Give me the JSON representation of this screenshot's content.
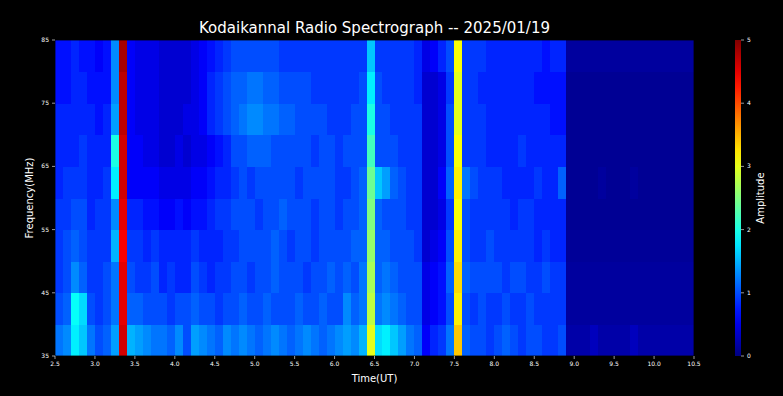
{
  "chart_data": {
    "type": "heatmap",
    "title": "Kodaikannal Radio Spectrograph -- 2025/01/19",
    "x_label": "Time(UT)",
    "y_label": "Frequency(MHz)",
    "x": [
      2.55,
      2.65,
      2.75,
      2.85,
      2.95,
      3.05,
      3.15,
      3.25,
      3.35,
      3.45,
      3.55,
      3.65,
      3.75,
      3.85,
      3.95,
      4.05,
      4.15,
      4.25,
      4.35,
      4.45,
      4.55,
      4.65,
      4.75,
      4.85,
      4.95,
      5.05,
      5.15,
      5.25,
      5.35,
      5.45,
      5.55,
      5.65,
      5.75,
      5.85,
      5.95,
      6.05,
      6.15,
      6.25,
      6.35,
      6.45,
      6.55,
      6.65,
      6.75,
      6.85,
      6.95,
      7.05,
      7.15,
      7.25,
      7.35,
      7.45,
      7.55,
      7.65,
      7.75,
      7.85,
      7.95,
      8.05,
      8.15,
      8.25,
      8.35,
      8.45,
      8.55,
      8.65,
      8.75,
      8.85,
      8.95,
      9.05,
      9.15,
      9.25,
      9.35,
      9.45,
      9.55,
      9.65,
      9.75,
      9.85,
      9.95,
      10.05,
      10.15,
      10.25,
      10.35,
      10.45
    ],
    "y": [
      37.5,
      42.5,
      47.5,
      52.5,
      57.5,
      62.5,
      67.5,
      72.5,
      77.5,
      82.5
    ],
    "values": [
      [
        1.2,
        1.3,
        1.8,
        1.6,
        1.2,
        1.0,
        1.1,
        1.4,
        4.6,
        1.5,
        1.4,
        1.3,
        1.2,
        1.2,
        1.1,
        1.3,
        1.0,
        1.4,
        1.3,
        1.2,
        1.1,
        1.3,
        1.2,
        1.3,
        1.2,
        1.1,
        1.2,
        1.3,
        1.2,
        1.1,
        1.2,
        1.3,
        1.2,
        1.1,
        1.2,
        1.3,
        1.4,
        1.3,
        1.5,
        3.0,
        1.7,
        1.8,
        1.6,
        1.4,
        1.2,
        1.1,
        0.6,
        0.8,
        0.9,
        1.2,
        3.4,
        1.1,
        1.0,
        1.0,
        0.9,
        1.0,
        1.1,
        1.0,
        0.9,
        1.0,
        1.0,
        0.9,
        0.9,
        1.0,
        0.2,
        0.2,
        0.2,
        0.3,
        0.2,
        0.2,
        0.2,
        0.2,
        0.3,
        0.2,
        0.2,
        0.2,
        0.2,
        0.2,
        0.2,
        0.2
      ],
      [
        1.0,
        1.1,
        1.9,
        1.7,
        1.0,
        0.9,
        1.0,
        1.2,
        4.5,
        1.1,
        1.1,
        1.0,
        1.0,
        1.0,
        0.9,
        1.0,
        1.0,
        1.1,
        1.0,
        1.0,
        0.9,
        1.0,
        1.0,
        1.1,
        1.0,
        1.0,
        1.1,
        1.0,
        1.0,
        1.0,
        1.1,
        1.0,
        1.0,
        1.1,
        1.0,
        1.0,
        1.3,
        1.1,
        1.2,
        2.8,
        1.2,
        1.3,
        1.2,
        1.1,
        1.0,
        1.0,
        0.5,
        0.6,
        0.7,
        1.0,
        3.2,
        1.0,
        0.9,
        1.0,
        0.9,
        0.9,
        1.0,
        0.9,
        0.9,
        1.0,
        0.9,
        0.9,
        0.9,
        0.9,
        0.15,
        0.15,
        0.15,
        0.15,
        0.15,
        0.15,
        0.15,
        0.15,
        0.15,
        0.15,
        0.15,
        0.15,
        0.15,
        0.15,
        0.15,
        0.15
      ],
      [
        0.9,
        1.0,
        1.3,
        1.1,
        0.9,
        0.9,
        1.0,
        1.2,
        4.5,
        1.0,
        0.9,
        0.9,
        1.0,
        0.8,
        0.9,
        0.8,
        0.8,
        1.0,
        0.9,
        0.8,
        0.9,
        0.9,
        1.0,
        1.0,
        0.9,
        1.0,
        1.0,
        1.1,
        1.0,
        1.0,
        1.0,
        0.9,
        1.0,
        1.0,
        1.1,
        1.0,
        1.1,
        1.0,
        1.2,
        2.7,
        1.1,
        1.2,
        1.1,
        1.0,
        1.0,
        1.0,
        0.5,
        0.6,
        0.7,
        1.1,
        3.3,
        1.1,
        1.0,
        1.0,
        1.0,
        1.0,
        0.9,
        1.0,
        1.0,
        0.9,
        0.9,
        1.0,
        0.9,
        0.9,
        0.15,
        0.15,
        0.15,
        0.15,
        0.15,
        0.15,
        0.15,
        0.15,
        0.15,
        0.15,
        0.15,
        0.15,
        0.15,
        0.15,
        0.15,
        0.15
      ],
      [
        0.9,
        1.0,
        1.1,
        1.0,
        0.9,
        0.9,
        0.9,
        1.5,
        4.4,
        0.9,
        0.9,
        0.8,
        0.9,
        0.8,
        0.8,
        0.8,
        0.8,
        0.9,
        0.8,
        0.8,
        0.8,
        0.9,
        0.9,
        1.0,
        1.0,
        1.0,
        1.0,
        1.1,
        1.0,
        0.9,
        1.0,
        1.0,
        0.9,
        1.0,
        1.0,
        1.0,
        1.0,
        1.1,
        1.1,
        2.6,
        1.1,
        1.1,
        1.0,
        1.0,
        1.0,
        0.9,
        0.4,
        0.5,
        0.6,
        1.0,
        3.2,
        1.0,
        0.9,
        0.9,
        1.0,
        0.9,
        0.9,
        0.9,
        0.9,
        0.9,
        0.8,
        0.9,
        0.8,
        0.8,
        0.12,
        0.12,
        0.12,
        0.12,
        0.12,
        0.12,
        0.12,
        0.12,
        0.12,
        0.12,
        0.12,
        0.12,
        0.12,
        0.12,
        0.12,
        0.12
      ],
      [
        0.9,
        0.9,
        1.0,
        1.0,
        0.8,
        0.9,
        0.9,
        1.3,
        4.5,
        0.8,
        0.8,
        0.7,
        0.7,
        0.6,
        0.6,
        0.7,
        0.6,
        0.7,
        0.7,
        0.8,
        0.9,
        0.9,
        1.0,
        1.0,
        1.0,
        0.9,
        1.0,
        1.0,
        1.1,
        1.0,
        1.0,
        1.0,
        0.9,
        1.0,
        1.0,
        0.9,
        1.0,
        1.0,
        1.1,
        2.5,
        1.1,
        1.0,
        1.0,
        1.0,
        0.9,
        0.9,
        0.4,
        0.4,
        0.5,
        0.9,
        3.1,
        1.0,
        0.9,
        0.9,
        0.9,
        0.9,
        0.9,
        0.8,
        0.9,
        0.9,
        0.8,
        0.8,
        0.8,
        0.8,
        0.1,
        0.1,
        0.1,
        0.1,
        0.1,
        0.1,
        0.1,
        0.1,
        0.1,
        0.1,
        0.1,
        0.1,
        0.1,
        0.1,
        0.1,
        0.1
      ],
      [
        0.8,
        0.9,
        0.9,
        0.9,
        0.8,
        0.8,
        0.9,
        1.8,
        4.6,
        0.6,
        0.6,
        0.6,
        0.6,
        0.5,
        0.5,
        0.5,
        0.5,
        0.6,
        0.6,
        0.7,
        0.8,
        0.8,
        0.9,
        1.0,
        0.9,
        1.0,
        1.0,
        1.0,
        1.0,
        1.0,
        0.9,
        1.0,
        1.0,
        1.0,
        1.0,
        0.9,
        0.9,
        1.0,
        1.1,
        2.4,
        1.6,
        1.4,
        1.1,
        1.0,
        0.9,
        0.9,
        0.4,
        0.4,
        0.6,
        1.1,
        3.2,
        1.2,
        1.0,
        0.9,
        0.9,
        0.9,
        0.8,
        0.8,
        0.8,
        0.8,
        0.9,
        0.8,
        0.8,
        1.1,
        0.1,
        0.1,
        0.1,
        0.1,
        0.15,
        0.1,
        0.1,
        0.1,
        0.15,
        0.1,
        0.1,
        0.1,
        0.1,
        0.1,
        0.1,
        0.1
      ],
      [
        0.8,
        0.8,
        0.8,
        0.9,
        0.8,
        0.8,
        0.8,
        2.0,
        4.6,
        0.6,
        0.6,
        0.5,
        0.5,
        0.4,
        0.4,
        0.5,
        0.4,
        0.5,
        0.5,
        0.6,
        0.7,
        0.8,
        1.0,
        1.0,
        1.1,
        1.1,
        1.1,
        1.0,
        1.0,
        1.0,
        1.0,
        1.0,
        0.9,
        1.0,
        1.0,
        0.9,
        1.0,
        1.0,
        1.0,
        2.2,
        1.0,
        1.0,
        1.0,
        0.9,
        0.9,
        0.9,
        0.4,
        0.4,
        0.5,
        1.0,
        3.1,
        0.9,
        0.9,
        0.9,
        0.8,
        0.8,
        0.8,
        0.8,
        0.9,
        0.8,
        0.8,
        0.8,
        0.8,
        0.8,
        0.1,
        0.1,
        0.1,
        0.1,
        0.1,
        0.1,
        0.1,
        0.1,
        0.1,
        0.1,
        0.1,
        0.1,
        0.1,
        0.1,
        0.1,
        0.1
      ],
      [
        0.8,
        0.8,
        0.8,
        0.8,
        0.8,
        0.7,
        0.8,
        1.4,
        4.7,
        0.6,
        0.5,
        0.5,
        0.5,
        0.4,
        0.4,
        0.4,
        0.5,
        0.5,
        0.6,
        0.8,
        0.9,
        1.0,
        1.1,
        1.2,
        1.3,
        1.3,
        1.2,
        1.2,
        1.1,
        1.1,
        1.0,
        1.0,
        1.0,
        1.0,
        0.9,
        0.9,
        0.9,
        1.0,
        1.0,
        2.0,
        1.0,
        1.0,
        0.9,
        0.9,
        0.9,
        0.9,
        0.4,
        0.4,
        0.5,
        1.0,
        3.0,
        0.9,
        0.9,
        0.9,
        0.8,
        0.8,
        0.8,
        0.8,
        0.8,
        0.8,
        0.8,
        0.8,
        0.7,
        0.7,
        0.1,
        0.1,
        0.1,
        0.1,
        0.1,
        0.1,
        0.1,
        0.1,
        0.1,
        0.1,
        0.1,
        0.1,
        0.1,
        0.1,
        0.1,
        0.1
      ],
      [
        0.7,
        0.7,
        0.8,
        0.8,
        0.7,
        0.7,
        0.7,
        1.3,
        4.7,
        0.6,
        0.5,
        0.5,
        0.5,
        0.4,
        0.4,
        0.4,
        0.4,
        0.5,
        0.6,
        0.8,
        0.9,
        1.0,
        1.1,
        1.1,
        1.2,
        1.2,
        1.1,
        1.1,
        1.0,
        1.0,
        1.0,
        1.0,
        0.9,
        0.9,
        0.9,
        0.9,
        0.9,
        0.9,
        1.0,
        1.8,
        1.0,
        0.9,
        0.9,
        0.9,
        0.9,
        0.8,
        0.4,
        0.4,
        0.5,
        0.9,
        3.0,
        0.9,
        0.9,
        0.8,
        0.8,
        0.8,
        0.8,
        0.8,
        0.8,
        0.8,
        0.7,
        0.7,
        0.7,
        0.7,
        0.1,
        0.1,
        0.1,
        0.1,
        0.1,
        0.1,
        0.1,
        0.1,
        0.1,
        0.1,
        0.1,
        0.1,
        0.1,
        0.1,
        0.1,
        0.1
      ],
      [
        0.7,
        0.7,
        0.8,
        0.7,
        0.7,
        0.6,
        0.7,
        1.3,
        4.8,
        0.6,
        0.5,
        0.5,
        0.5,
        0.4,
        0.4,
        0.4,
        0.4,
        0.5,
        0.6,
        0.7,
        0.8,
        0.9,
        1.0,
        1.0,
        1.0,
        1.0,
        1.0,
        1.0,
        0.9,
        0.9,
        0.9,
        0.9,
        0.9,
        0.9,
        0.9,
        0.9,
        0.9,
        0.9,
        0.9,
        1.6,
        0.9,
        0.9,
        0.9,
        0.9,
        0.9,
        0.8,
        0.5,
        0.6,
        0.8,
        1.0,
        3.1,
        0.9,
        0.9,
        0.9,
        0.8,
        0.8,
        0.8,
        0.8,
        0.8,
        0.8,
        0.8,
        0.7,
        0.8,
        0.8,
        0.15,
        0.15,
        0.15,
        0.15,
        0.15,
        0.15,
        0.15,
        0.15,
        0.15,
        0.15,
        0.15,
        0.15,
        0.15,
        0.15,
        0.15,
        0.15
      ]
    ],
    "xlim": [
      2.5,
      10.5
    ],
    "ylim": [
      35,
      85
    ],
    "xticks": [
      2.5,
      {
        "value": 3,
        "label": "3.0"
      },
      3.5,
      {
        "value": 4,
        "label": "4.0"
      },
      4.5,
      {
        "value": 5,
        "label": "5.0"
      },
      5.5,
      {
        "value": 6,
        "label": "6.0"
      },
      6.5,
      {
        "value": 7,
        "label": "7.0"
      },
      7.5,
      {
        "value": 8,
        "label": "8.0"
      },
      8.5,
      {
        "value": 9,
        "label": "9.0"
      },
      9.5,
      {
        "value": 10,
        "label": "10.0"
      },
      10.5
    ],
    "yticks": [
      35,
      45,
      55,
      65,
      75,
      85
    ],
    "colorbar_label": "Amplitude",
    "colorbar_range": [
      0,
      5
    ],
    "colorbar_ticks": [
      0,
      1,
      2,
      3,
      4,
      5
    ]
  }
}
